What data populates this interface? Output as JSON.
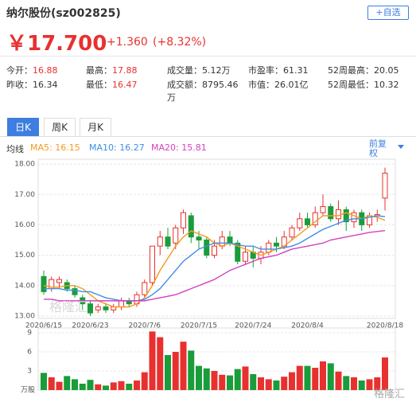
{
  "header": {
    "title": "纳尔股份(sz002825)",
    "button": "+自选",
    "price": "￥17.700",
    "change": "+1.360",
    "change_pct": "(+8.32%)"
  },
  "stats": [
    [
      {
        "label": "今开：",
        "value": "16.88"
      },
      {
        "label": "最高：",
        "value": "17.88"
      },
      {
        "label": "成交量：",
        "value": "5.12万"
      },
      {
        "label": "市盈率：",
        "value": "61.31"
      },
      {
        "label": "52周最高：",
        "value": "20.05"
      }
    ],
    [
      {
        "label": "昨收：",
        "value": "16.34"
      },
      {
        "label": "最低：",
        "value": "16.47"
      },
      {
        "label": "成交额：",
        "value": "8795.46万"
      },
      {
        "label": "市值：",
        "value": "26.01亿"
      },
      {
        "label": "52周最低：",
        "value": "10.32"
      }
    ]
  ],
  "tabs": [
    "日K",
    "周K",
    "月K"
  ],
  "ma_title": "均线",
  "adjust": "前复权",
  "watermark": "格隆汇",
  "chart_data": [
    {
      "type": "candlestick",
      "up_color": "#e8312f",
      "down_color": "#1a9c3a",
      "categories": [
        "2020/6/15",
        null,
        null,
        null,
        null,
        null,
        "2020/6/23",
        null,
        null,
        null,
        null,
        null,
        null,
        "2020/7/6",
        null,
        null,
        null,
        null,
        null,
        null,
        "2020/7/15",
        null,
        null,
        null,
        null,
        null,
        null,
        "2020/7/24",
        null,
        null,
        null,
        null,
        null,
        null,
        "2020/8/4",
        null,
        null,
        null,
        null,
        null,
        null,
        null,
        null,
        null,
        "2020/8/18"
      ],
      "open": [
        14.3,
        13.9,
        14.1,
        14.1,
        13.9,
        13.6,
        13.4,
        13.2,
        13.3,
        13.2,
        13.3,
        13.5,
        13.4,
        13.7,
        14.1,
        15.3,
        15.6,
        15.4,
        15.9,
        16.3,
        15.6,
        15.5,
        15.0,
        15.3,
        15.6,
        15.4,
        14.8,
        15.1,
        14.9,
        15.1,
        15.4,
        15.3,
        15.6,
        15.9,
        16.2,
        16.0,
        16.4,
        16.6,
        16.2,
        16.5,
        16.1,
        16.4,
        16.0,
        16.3,
        16.88
      ],
      "close": [
        13.8,
        14.2,
        14.2,
        13.9,
        13.7,
        13.4,
        13.1,
        13.3,
        13.2,
        13.3,
        13.5,
        13.4,
        13.7,
        14.1,
        15.3,
        15.6,
        15.3,
        15.9,
        16.4,
        15.6,
        15.5,
        15.0,
        15.3,
        15.6,
        15.4,
        14.8,
        15.1,
        14.9,
        15.1,
        15.4,
        15.3,
        15.6,
        15.9,
        16.2,
        16.0,
        16.4,
        16.6,
        16.2,
        16.5,
        16.1,
        16.4,
        16.0,
        16.3,
        16.34,
        17.7
      ],
      "high": [
        14.5,
        14.3,
        14.3,
        14.2,
        14.0,
        13.7,
        13.5,
        13.4,
        13.4,
        13.4,
        13.6,
        13.6,
        13.8,
        14.2,
        15.3,
        15.8,
        15.9,
        16.0,
        16.5,
        16.4,
        15.8,
        15.6,
        15.5,
        15.8,
        15.8,
        15.5,
        15.3,
        15.3,
        15.3,
        15.5,
        15.6,
        15.8,
        16.0,
        16.4,
        16.4,
        16.6,
        17.0,
        16.7,
        16.8,
        16.6,
        16.5,
        16.5,
        16.4,
        16.5,
        17.88
      ],
      "low": [
        13.7,
        13.8,
        13.9,
        13.8,
        13.6,
        13.2,
        13.0,
        13.1,
        13.1,
        13.1,
        13.2,
        13.3,
        13.3,
        13.6,
        14.0,
        15.0,
        15.2,
        15.2,
        15.7,
        15.4,
        15.2,
        14.9,
        14.9,
        15.2,
        15.3,
        14.7,
        14.7,
        14.6,
        14.7,
        15.0,
        15.1,
        15.2,
        15.5,
        15.8,
        15.9,
        15.9,
        16.3,
        16.1,
        16.0,
        15.8,
        15.9,
        15.8,
        15.9,
        16.1,
        16.47
      ],
      "series": [
        {
          "name": "MA5: 16.15",
          "color": "#f39a1e",
          "values": [
            14.0,
            13.95,
            13.95,
            14.0,
            14.0,
            13.9,
            13.7,
            13.5,
            13.4,
            13.3,
            13.3,
            13.3,
            13.4,
            13.6,
            14.0,
            14.5,
            14.9,
            15.3,
            15.6,
            15.8,
            15.7,
            15.6,
            15.4,
            15.3,
            15.4,
            15.3,
            15.2,
            15.1,
            15.0,
            15.1,
            15.2,
            15.3,
            15.5,
            15.7,
            15.9,
            16.1,
            16.3,
            16.3,
            16.3,
            16.4,
            16.3,
            16.2,
            16.3,
            16.25,
            16.15
          ]
        },
        {
          "name": "MA10: 16.27",
          "color": "#3d8ee8",
          "values": [
            13.9,
            13.9,
            13.9,
            13.85,
            13.85,
            13.8,
            13.8,
            13.7,
            13.6,
            13.55,
            13.5,
            13.5,
            13.5,
            13.55,
            13.7,
            13.9,
            14.2,
            14.5,
            14.8,
            15.0,
            15.2,
            15.3,
            15.4,
            15.4,
            15.4,
            15.35,
            15.3,
            15.3,
            15.2,
            15.2,
            15.2,
            15.25,
            15.3,
            15.4,
            15.55,
            15.7,
            15.85,
            15.95,
            16.05,
            16.15,
            16.2,
            16.2,
            16.25,
            16.3,
            16.27
          ]
        },
        {
          "name": "MA20: 15.81",
          "color": "#d63fc0",
          "values": [
            13.55,
            13.55,
            13.5,
            13.5,
            13.5,
            13.5,
            13.5,
            13.5,
            13.5,
            13.5,
            13.5,
            13.5,
            13.5,
            13.5,
            13.55,
            13.6,
            13.65,
            13.7,
            13.8,
            13.9,
            14.0,
            14.1,
            14.2,
            14.35,
            14.5,
            14.6,
            14.7,
            14.8,
            14.9,
            14.95,
            15.0,
            15.1,
            15.2,
            15.25,
            15.3,
            15.35,
            15.4,
            15.5,
            15.55,
            15.6,
            15.65,
            15.7,
            15.75,
            15.78,
            15.81
          ]
        }
      ],
      "ylim": [
        12.92,
        18.16
      ],
      "yticks": [
        {
          "value": 13,
          "label": "13.00"
        },
        {
          "value": 14,
          "label": "14.00"
        },
        {
          "value": 15,
          "label": "15.00"
        },
        {
          "value": 16,
          "label": "16.00"
        },
        {
          "value": 17,
          "label": "17.00"
        },
        {
          "value": 18,
          "label": "18.00"
        }
      ],
      "grid": true
    },
    {
      "type": "bar",
      "y_label": "万股",
      "values": [
        2.7,
        2.0,
        1.3,
        2.2,
        1.7,
        1.0,
        1.6,
        0.9,
        0.7,
        1.2,
        1.4,
        1.0,
        1.5,
        2.8,
        9.2,
        8.3,
        5.5,
        6.0,
        7.6,
        6.2,
        3.8,
        3.4,
        3.0,
        2.4,
        2.3,
        3.3,
        3.7,
        2.5,
        2.0,
        1.7,
        1.5,
        2.1,
        2.8,
        3.8,
        3.8,
        3.5,
        4.5,
        4.2,
        2.9,
        2.2,
        2.0,
        1.5,
        1.7,
        2.0,
        5.12
      ],
      "ylim": [
        0,
        9.5
      ],
      "yticks": [
        3,
        6,
        9
      ],
      "grid": true
    }
  ]
}
